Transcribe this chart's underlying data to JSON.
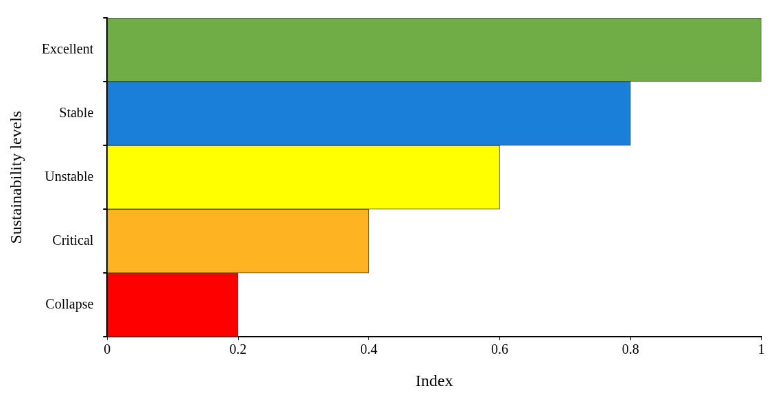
{
  "chart_data": {
    "type": "bar",
    "orientation": "horizontal",
    "xlabel": "Index",
    "ylabel": "Sustainability levels",
    "categories": [
      "Excellent",
      "Stable",
      "Unstable",
      "Critical",
      "Collapse"
    ],
    "values": [
      1,
      0.8,
      0.6,
      0.4,
      0.2
    ],
    "colors": [
      "#70ad47",
      "#1a7fd9",
      "#ffff00",
      "#fdb322",
      "#ff0000"
    ],
    "xlim": [
      0,
      1
    ],
    "xticks": [
      0,
      0.2,
      0.4,
      0.6,
      0.8,
      1
    ],
    "grid": false,
    "legend": false
  }
}
